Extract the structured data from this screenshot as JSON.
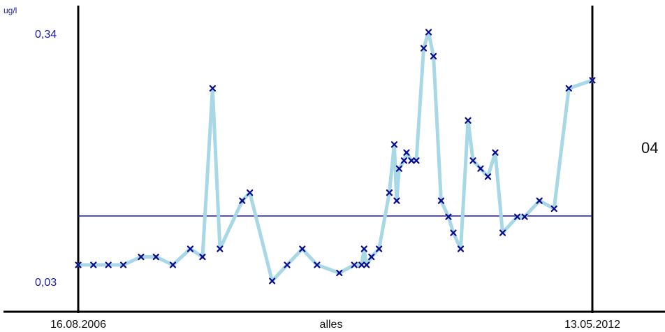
{
  "chart_data": {
    "type": "line",
    "unit": "ug/l",
    "y_tick_labels": [
      "0,34",
      "0,03"
    ],
    "ylim": [
      0.03,
      0.34
    ],
    "x_start_label": "16.08.2006",
    "x_center_label": "alles",
    "x_end_label": "13.05.2012",
    "x_range": [
      "2006-08-16",
      "2012-05-13"
    ],
    "reference_line": 0.111,
    "right_edge_text": "04",
    "colors": {
      "line": "#a8d8e6",
      "marker": "#0a0a8c",
      "reference": "#1a1a8c",
      "axis": "#000000"
    },
    "series": [
      {
        "values": [
          [
            "2006-08-16",
            0.05
          ],
          [
            "2006-10-17",
            0.05
          ],
          [
            "2006-12-17",
            0.05
          ],
          [
            "2007-02-16",
            0.05
          ],
          [
            "2007-04-29",
            0.06
          ],
          [
            "2007-06-29",
            0.06
          ],
          [
            "2007-09-06",
            0.05
          ],
          [
            "2007-11-16",
            0.07
          ],
          [
            "2008-01-05",
            0.06
          ],
          [
            "2008-02-15",
            0.27
          ],
          [
            "2008-03-16",
            0.07
          ],
          [
            "2008-06-15",
            0.13
          ],
          [
            "2008-07-16",
            0.14
          ],
          [
            "2008-10-15",
            0.03
          ],
          [
            "2008-12-15",
            0.05
          ],
          [
            "2009-02-15",
            0.07
          ],
          [
            "2009-04-16",
            0.05
          ],
          [
            "2009-07-16",
            0.04
          ],
          [
            "2009-09-15",
            0.05
          ],
          [
            "2009-10-15",
            0.05
          ],
          [
            "2009-10-25",
            0.07
          ],
          [
            "2009-11-04",
            0.05
          ],
          [
            "2009-11-24",
            0.06
          ],
          [
            "2009-12-25",
            0.07
          ],
          [
            "2010-02-05",
            0.14
          ],
          [
            "2010-02-25",
            0.2
          ],
          [
            "2010-03-07",
            0.13
          ],
          [
            "2010-03-17",
            0.17
          ],
          [
            "2010-04-06",
            0.18
          ],
          [
            "2010-04-16",
            0.19
          ],
          [
            "2010-05-06",
            0.18
          ],
          [
            "2010-05-26",
            0.18
          ],
          [
            "2010-06-25",
            0.32
          ],
          [
            "2010-07-15",
            0.34
          ],
          [
            "2010-08-04",
            0.31
          ],
          [
            "2010-09-04",
            0.13
          ],
          [
            "2010-10-04",
            0.11
          ],
          [
            "2010-10-24",
            0.09
          ],
          [
            "2010-11-23",
            0.07
          ],
          [
            "2010-12-23",
            0.23
          ],
          [
            "2011-01-12",
            0.18
          ],
          [
            "2011-02-12",
            0.17
          ],
          [
            "2011-03-14",
            0.16
          ],
          [
            "2011-04-13",
            0.19
          ],
          [
            "2011-05-13",
            0.09
          ],
          [
            "2011-07-12",
            0.11
          ],
          [
            "2011-08-11",
            0.11
          ],
          [
            "2011-10-10",
            0.13
          ],
          [
            "2011-12-09",
            0.12
          ],
          [
            "2012-02-07",
            0.27
          ],
          [
            "2012-05-13",
            0.28
          ]
        ]
      }
    ]
  }
}
